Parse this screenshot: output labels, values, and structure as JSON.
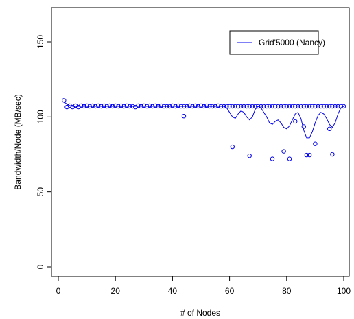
{
  "colors": {
    "series": "#0000ee",
    "axis": "#000000",
    "background": "#ffffff"
  },
  "chart_data": {
    "type": "scatter",
    "title": "",
    "xlabel": "# of Nodes",
    "ylabel": "Bandwidth/Node (MB/sec)",
    "xlim": [
      0,
      101
    ],
    "ylim": [
      0,
      170
    ],
    "xticks": [
      0,
      20,
      40,
      60,
      80,
      100
    ],
    "yticks": [
      0,
      50,
      100,
      150
    ],
    "grid": false,
    "legend": {
      "position": "top-right",
      "entries": [
        "Grid'5000 (Nancy)"
      ]
    },
    "series": [
      {
        "name": "Grid'5000 (Nancy)",
        "kind": "points",
        "x": [
          2,
          3,
          4,
          5,
          6,
          7,
          8,
          9,
          10,
          11,
          12,
          13,
          14,
          15,
          16,
          17,
          18,
          19,
          20,
          21,
          22,
          23,
          24,
          25,
          26,
          27,
          28,
          29,
          30,
          31,
          32,
          33,
          34,
          35,
          36,
          37,
          38,
          39,
          40,
          41,
          42,
          43,
          44,
          45,
          46,
          47,
          48,
          49,
          50,
          51,
          52,
          53,
          54,
          55,
          56,
          57,
          58,
          59,
          60,
          61,
          62,
          63,
          64,
          65,
          66,
          67,
          68,
          69,
          70,
          71,
          72,
          73,
          74,
          75,
          76,
          77,
          78,
          79,
          80,
          81,
          82,
          83,
          84,
          85,
          86,
          87,
          88,
          89,
          90,
          91,
          92,
          93,
          94,
          95,
          96,
          97,
          98,
          99,
          100,
          44,
          61,
          67,
          75,
          79,
          81,
          83,
          86,
          87,
          88,
          90,
          95,
          96
        ],
        "y": [
          111,
          106.5,
          107.5,
          106.5,
          107.5,
          106.5,
          107.5,
          107,
          107.5,
          107,
          107.5,
          107,
          107.5,
          107,
          107.5,
          107,
          107.5,
          107,
          107.5,
          107,
          107.5,
          107,
          107.5,
          107,
          107,
          106.5,
          107.5,
          107,
          107.5,
          107,
          107.5,
          107,
          107.5,
          107,
          107.5,
          107,
          107,
          107,
          107.5,
          107,
          107.5,
          107,
          107,
          107,
          107.5,
          107,
          107.5,
          107,
          107.5,
          107,
          107.5,
          107,
          107,
          107,
          107.5,
          107,
          107,
          107,
          107,
          107,
          107,
          107,
          107,
          107,
          107,
          107,
          107,
          107,
          107,
          107,
          107,
          107,
          107,
          107,
          107,
          107,
          107,
          107,
          107,
          107,
          107,
          107,
          107,
          107,
          107,
          107,
          107,
          107,
          107,
          107,
          107,
          107,
          107,
          107,
          107,
          107,
          107,
          107,
          107,
          100.5,
          80,
          74,
          72,
          77,
          72,
          97,
          93.5,
          74.5,
          74.5,
          82,
          92,
          75
        ]
      },
      {
        "name": "Grid'5000 (Nancy)",
        "kind": "line",
        "x": [
          2,
          3,
          4,
          5,
          6,
          7,
          8,
          9,
          10,
          12,
          14,
          16,
          18,
          20,
          22,
          24,
          26,
          28,
          30,
          32,
          34,
          36,
          38,
          40,
          42,
          44,
          46,
          48,
          50,
          52,
          54,
          56,
          58,
          59,
          60,
          61,
          62,
          63,
          64,
          65,
          66,
          67,
          68,
          69,
          70,
          71,
          72,
          73,
          74,
          75,
          76,
          77,
          78,
          79,
          80,
          81,
          82,
          83,
          84,
          85,
          86,
          87,
          88,
          89,
          90,
          91,
          92,
          93,
          94,
          95,
          96,
          97,
          98,
          99,
          100
        ],
        "y": [
          110,
          108.5,
          107.5,
          107,
          107,
          107,
          107,
          107,
          107,
          107,
          107,
          107,
          107,
          107,
          107,
          107,
          107,
          107,
          107,
          107,
          107,
          107,
          107,
          107,
          107,
          107,
          107,
          107,
          107,
          107,
          107,
          107,
          107,
          106,
          103,
          100,
          99,
          102,
          104,
          103,
          100,
          98,
          100,
          105,
          107,
          106,
          103,
          100,
          96,
          95,
          97,
          98,
          96,
          93,
          92,
          94,
          98,
          102,
          103,
          99,
          91,
          86,
          86,
          90,
          96,
          101,
          103,
          102,
          99,
          95,
          93,
          96,
          102,
          106,
          107
        ]
      }
    ]
  }
}
